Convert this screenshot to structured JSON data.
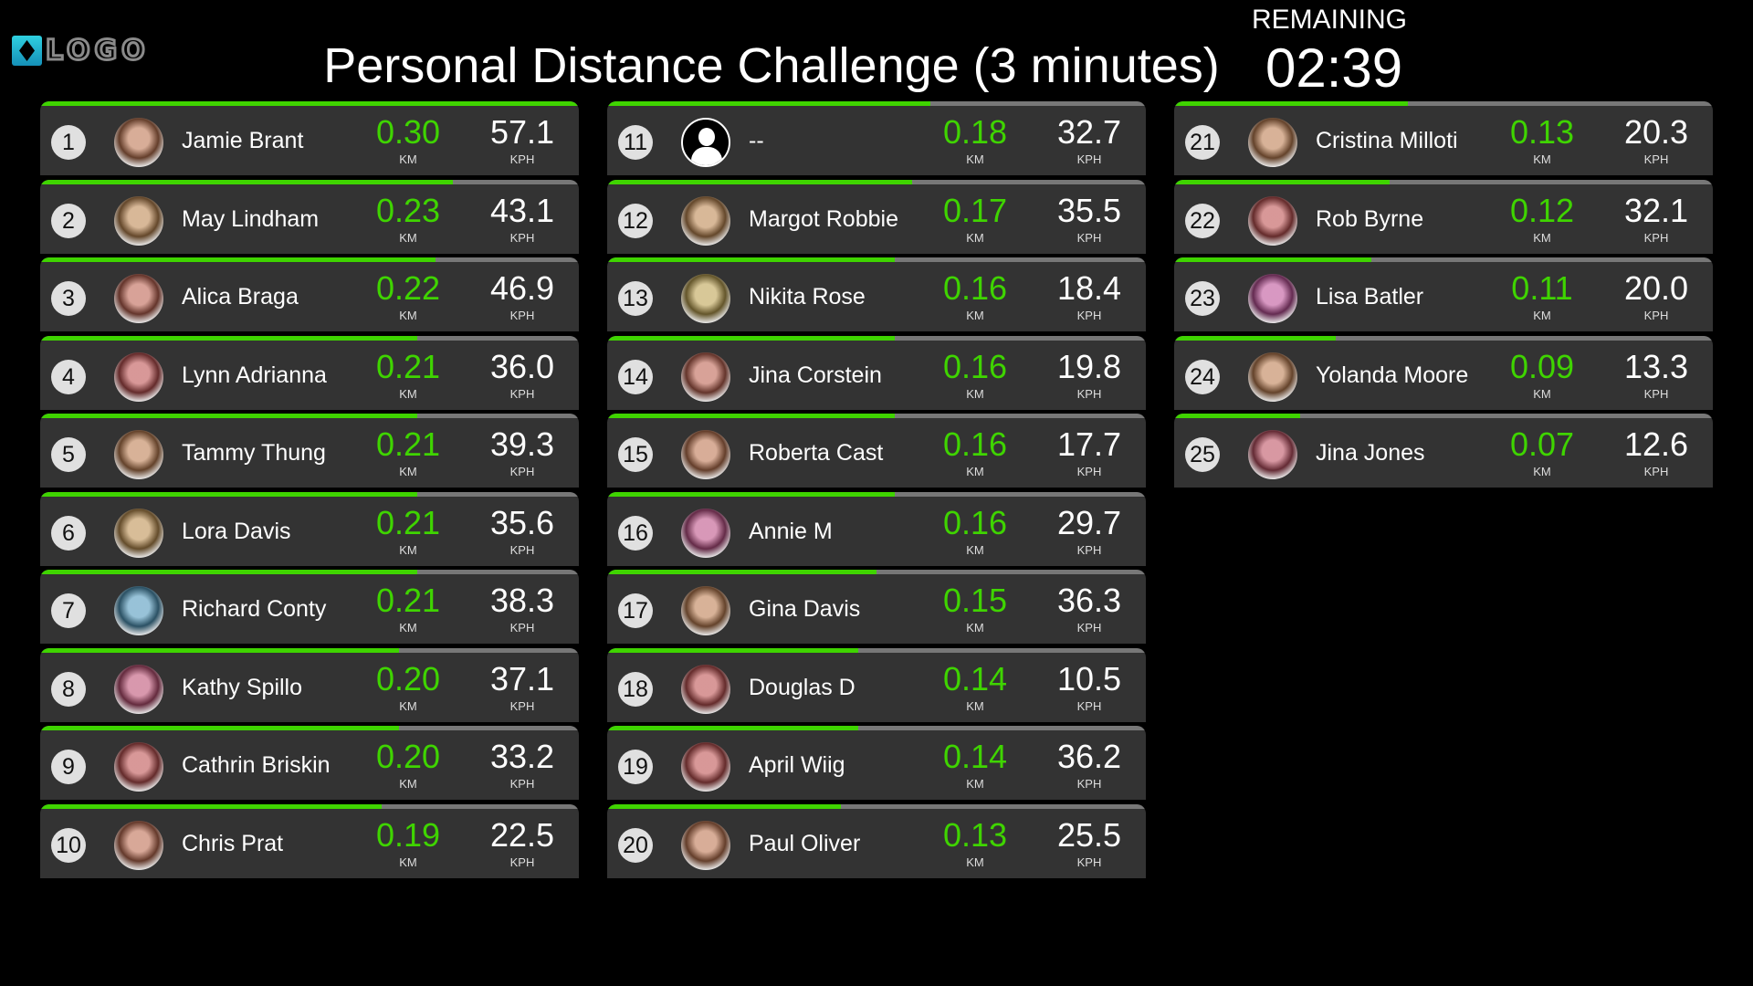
{
  "header": {
    "logo_text": "LOGO",
    "title": "Personal Distance Challenge (3 minutes)",
    "remaining_label": "REMAINING",
    "timer": "02:39"
  },
  "colors": {
    "accent": "#3fd400",
    "card": "#333333",
    "rank_badge": "#e0e0e0"
  },
  "units": {
    "distance": "KM",
    "speed": "KPH"
  },
  "max_distance": 0.3,
  "entries": [
    {
      "rank": "1",
      "name": "Jamie Brant",
      "km": "0.30",
      "kph": "57.1"
    },
    {
      "rank": "2",
      "name": "May Lindham",
      "km": "0.23",
      "kph": "43.1"
    },
    {
      "rank": "3",
      "name": "Alica Braga",
      "km": "0.22",
      "kph": "46.9"
    },
    {
      "rank": "4",
      "name": "Lynn Adrianna",
      "km": "0.21",
      "kph": "36.0"
    },
    {
      "rank": "5",
      "name": "Tammy Thung",
      "km": "0.21",
      "kph": "39.3"
    },
    {
      "rank": "6",
      "name": "Lora Davis",
      "km": "0.21",
      "kph": "35.6"
    },
    {
      "rank": "7",
      "name": "Richard Conty",
      "km": "0.21",
      "kph": "38.3"
    },
    {
      "rank": "8",
      "name": "Kathy Spillo",
      "km": "0.20",
      "kph": "37.1"
    },
    {
      "rank": "9",
      "name": "Cathrin Briskin",
      "km": "0.20",
      "kph": "33.2"
    },
    {
      "rank": "10",
      "name": "Chris Prat",
      "km": "0.19",
      "kph": "22.5"
    },
    {
      "rank": "11",
      "name": "--",
      "km": "0.18",
      "kph": "32.7",
      "avatar": "default-user-icon"
    },
    {
      "rank": "12",
      "name": "Margot Robbie",
      "km": "0.17",
      "kph": "35.5"
    },
    {
      "rank": "13",
      "name": "Nikita Rose",
      "km": "0.16",
      "kph": "18.4"
    },
    {
      "rank": "14",
      "name": "Jina  Corstein",
      "km": "0.16",
      "kph": "19.8"
    },
    {
      "rank": "15",
      "name": "Roberta Cast",
      "km": "0.16",
      "kph": "17.7"
    },
    {
      "rank": "16",
      "name": "Annie M",
      "km": "0.16",
      "kph": "29.7"
    },
    {
      "rank": "17",
      "name": "Gina Davis",
      "km": "0.15",
      "kph": "36.3"
    },
    {
      "rank": "18",
      "name": "Douglas D",
      "km": "0.14",
      "kph": "10.5"
    },
    {
      "rank": "19",
      "name": "April  Wiig",
      "km": "0.14",
      "kph": "36.2"
    },
    {
      "rank": "20",
      "name": "Paul Oliver",
      "km": "0.13",
      "kph": "25.5"
    },
    {
      "rank": "21",
      "name": "Cristina Milloti",
      "km": "0.13",
      "kph": "20.3"
    },
    {
      "rank": "22",
      "name": "Rob Byrne",
      "km": "0.12",
      "kph": "32.1"
    },
    {
      "rank": "23",
      "name": "Lisa Batler",
      "km": "0.11",
      "kph": "20.0"
    },
    {
      "rank": "24",
      "name": "Yolanda  Moore",
      "km": "0.09",
      "kph": "13.3"
    },
    {
      "rank": "25",
      "name": "Jina Jones",
      "km": "0.07",
      "kph": "12.6"
    }
  ]
}
